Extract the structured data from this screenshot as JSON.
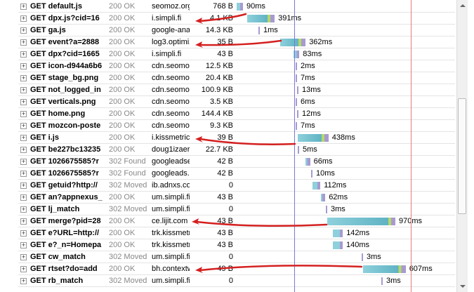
{
  "requests": [
    {
      "name": "GET default.js",
      "status": "200 OK",
      "domain": "seomoz.org",
      "size": "768 B",
      "start": 20,
      "duration": 90,
      "time": "90ms"
    },
    {
      "name": "GET dpx.js?cid=16",
      "status": "200 OK",
      "domain": "i.simpli.fi",
      "size": "4.1 KB",
      "start": 170,
      "duration": 391,
      "time": "391ms"
    },
    {
      "name": "GET ga.js",
      "status": "200 OK",
      "domain": "google-ana",
      "size": "14.3 KB",
      "start": 330,
      "duration": 1,
      "time": "1ms"
    },
    {
      "name": "GET event?a=2888",
      "status": "200 OK",
      "domain": "log3.optimiz",
      "size": "35 B",
      "start": 640,
      "duration": 362,
      "time": "362ms"
    },
    {
      "name": "GET dpx?cid=1665",
      "status": "200 OK",
      "domain": "i.simpli.fi",
      "size": "43 B",
      "start": 830,
      "duration": 83,
      "time": "83ms"
    },
    {
      "name": "GET icon-d944a6b6",
      "status": "200 OK",
      "domain": "cdn.seomoz",
      "size": "12.5 KB",
      "start": 860,
      "duration": 2,
      "time": "2ms"
    },
    {
      "name": "GET stage_bg.png",
      "status": "200 OK",
      "domain": "cdn.seomoz",
      "size": "20.4 KB",
      "start": 860,
      "duration": 7,
      "time": "7ms"
    },
    {
      "name": "GET not_logged_in",
      "status": "200 OK",
      "domain": "cdn.seomoz",
      "size": "100.9 KB",
      "start": 880,
      "duration": 13,
      "time": "13ms"
    },
    {
      "name": "GET verticals.png",
      "status": "200 OK",
      "domain": "cdn.seomoz",
      "size": "3.5 KB",
      "start": 860,
      "duration": 6,
      "time": "6ms"
    },
    {
      "name": "GET home.png",
      "status": "200 OK",
      "domain": "cdn.seomoz",
      "size": "144.4 KB",
      "start": 880,
      "duration": 12,
      "time": "12ms"
    },
    {
      "name": "GET mozcon-poste",
      "status": "200 OK",
      "domain": "cdn.seomoz",
      "size": "9.3 KB",
      "start": 860,
      "duration": 7,
      "time": "7ms"
    },
    {
      "name": "GET i.js",
      "status": "200 OK",
      "domain": "i.kissmetrics",
      "size": "39 B",
      "start": 890,
      "duration": 438,
      "time": "438ms"
    },
    {
      "name": "GET be227bc13235",
      "status": "200 OK",
      "domain": "doug1izaer",
      "size": "22.7 KB",
      "start": 890,
      "duration": 5,
      "time": "5ms"
    },
    {
      "name": "GET 1026675585?r",
      "status": "302 Found",
      "domain": "googleadse",
      "size": "42 B",
      "start": 1000,
      "duration": 66,
      "time": "66ms"
    },
    {
      "name": "GET 1026675585?r",
      "status": "302 Found",
      "domain": "googleads.",
      "size": "42 B",
      "start": 1080,
      "duration": 10,
      "time": "10ms"
    },
    {
      "name": "GET getuid?http://",
      "status": "302 Moved",
      "domain": "ib.adnxs.co",
      "size": "0",
      "start": 1100,
      "duration": 112,
      "time": "112ms"
    },
    {
      "name": "GET an?appnexus_",
      "status": "200 OK",
      "domain": "um.simpli.fi",
      "size": "43 B",
      "start": 1220,
      "duration": 62,
      "time": "62ms"
    },
    {
      "name": "GET lj_match",
      "status": "302 Moved",
      "domain": "um.simpli.fi",
      "size": "0",
      "start": 1290,
      "duration": 3,
      "time": "3ms"
    },
    {
      "name": "GET merge?pid=28",
      "status": "200 OK",
      "domain": "ce.lijit.com",
      "size": "43 B",
      "start": 1310,
      "duration": 970,
      "time": "970ms"
    },
    {
      "name": "GET e?URL=http://",
      "status": "200 OK",
      "domain": "trk.kissmetr",
      "size": "43 B",
      "start": 1390,
      "duration": 142,
      "time": "142ms"
    },
    {
      "name": "GET e?_n=Homepa",
      "status": "200 OK",
      "domain": "trk.kissmetri",
      "size": "43 B",
      "start": 1390,
      "duration": 140,
      "time": "140ms"
    },
    {
      "name": "GET cw_match",
      "status": "302 Moved",
      "domain": "um.simpli.fi",
      "size": "0",
      "start": 1800,
      "duration": 3,
      "time": "3ms"
    },
    {
      "name": "GET rtset?do=add",
      "status": "200 OK",
      "domain": "bh.contextw",
      "size": "49 B",
      "start": 1820,
      "duration": 607,
      "time": "607ms"
    },
    {
      "name": "GET rb_match",
      "status": "302 Moved",
      "domain": "um.simpli.fi",
      "size": "0",
      "start": 2080,
      "duration": 3,
      "time": "3ms"
    }
  ]
}
